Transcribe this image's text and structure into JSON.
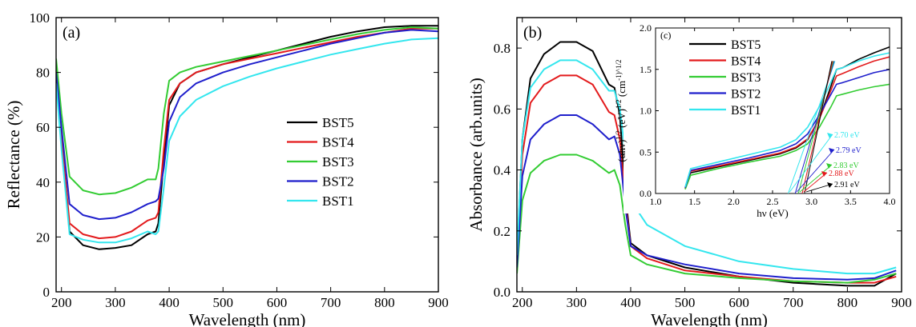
{
  "chart_data": [
    {
      "type": "line",
      "panel_label": "(a)",
      "xlabel": "Wavelength (nm)",
      "ylabel": "Reflectance (%)",
      "xlim": [
        190,
        900
      ],
      "ylim": [
        0,
        100
      ],
      "xticks": [
        200,
        300,
        400,
        500,
        600,
        700,
        800,
        900
      ],
      "yticks": [
        0,
        20,
        40,
        60,
        80,
        100
      ],
      "legend_position": "center-right",
      "series": [
        {
          "name": "BST5",
          "color": "#000000",
          "x": [
            190,
            200,
            215,
            240,
            270,
            300,
            330,
            360,
            375,
            380,
            390,
            400,
            420,
            450,
            500,
            550,
            600,
            650,
            700,
            750,
            800,
            850,
            900
          ],
          "y": [
            78,
            55,
            22,
            17,
            15.5,
            16,
            17,
            21,
            22,
            25,
            48,
            68,
            76,
            80,
            83,
            85.5,
            88,
            90.5,
            93,
            95,
            96.5,
            97,
            97
          ]
        },
        {
          "name": "BST4",
          "color": "#e31a1c",
          "x": [
            190,
            200,
            215,
            240,
            270,
            300,
            330,
            360,
            375,
            380,
            390,
            400,
            420,
            450,
            500,
            550,
            600,
            650,
            700,
            750,
            800,
            850,
            900
          ],
          "y": [
            79,
            56,
            25,
            21,
            19.5,
            20,
            22,
            26,
            27,
            29,
            52,
            70,
            76,
            80,
            83,
            85,
            87,
            89,
            91,
            93,
            94.5,
            96,
            96
          ]
        },
        {
          "name": "BST3",
          "color": "#33cc33",
          "x": [
            190,
            200,
            215,
            240,
            270,
            300,
            330,
            360,
            375,
            380,
            390,
            400,
            420,
            450,
            500,
            550,
            600,
            650,
            700,
            750,
            800,
            850,
            900
          ],
          "y": [
            85,
            65,
            42,
            37,
            35.5,
            36,
            38,
            41,
            41,
            45,
            65,
            77,
            80,
            82,
            84,
            86,
            88,
            90,
            92,
            94,
            95.5,
            96.5,
            96
          ]
        },
        {
          "name": "BST2",
          "color": "#1f1fcc",
          "x": [
            190,
            200,
            215,
            240,
            270,
            300,
            330,
            360,
            375,
            380,
            390,
            400,
            420,
            450,
            500,
            550,
            600,
            650,
            700,
            750,
            800,
            850,
            900
          ],
          "y": [
            80,
            60,
            32,
            28,
            26.5,
            27,
            29,
            32,
            33,
            34,
            45,
            62,
            71,
            76,
            80,
            83,
            85.5,
            88,
            90.5,
            92.5,
            94.5,
            95.5,
            95
          ]
        },
        {
          "name": "BST1",
          "color": "#33e6ee",
          "x": [
            190,
            200,
            215,
            240,
            270,
            300,
            330,
            360,
            375,
            380,
            390,
            400,
            420,
            450,
            500,
            550,
            600,
            650,
            700,
            750,
            800,
            850,
            900
          ],
          "y": [
            76,
            52,
            21,
            19,
            18,
            18,
            19.5,
            22,
            21,
            22,
            38,
            55,
            64,
            70,
            75,
            78.5,
            81.5,
            84,
            86.5,
            88.5,
            90.5,
            92,
            92.5
          ]
        }
      ]
    },
    {
      "type": "line",
      "panel_label": "(b)",
      "xlabel": "Wavelength (nm)",
      "ylabel": "Absorbance (arb.units)",
      "xlim": [
        190,
        900
      ],
      "ylim": [
        0,
        0.9
      ],
      "xticks": [
        200,
        300,
        400,
        500,
        600,
        700,
        800,
        900
      ],
      "yticks": [
        0.0,
        0.2,
        0.4,
        0.6,
        0.8
      ],
      "series": [
        {
          "name": "BST5",
          "color": "#000000",
          "x": [
            190,
            200,
            215,
            240,
            270,
            300,
            330,
            360,
            370,
            380,
            390,
            400,
            430,
            500,
            600,
            700,
            800,
            850,
            890
          ],
          "y": [
            0.1,
            0.5,
            0.7,
            0.78,
            0.82,
            0.82,
            0.79,
            0.68,
            0.67,
            0.58,
            0.32,
            0.16,
            0.12,
            0.08,
            0.05,
            0.03,
            0.02,
            0.02,
            0.06
          ]
        },
        {
          "name": "BST4",
          "color": "#e31a1c",
          "x": [
            190,
            200,
            215,
            240,
            270,
            300,
            330,
            360,
            370,
            380,
            390,
            400,
            430,
            500,
            600,
            700,
            800,
            850,
            890
          ],
          "y": [
            0.1,
            0.45,
            0.62,
            0.68,
            0.71,
            0.71,
            0.68,
            0.59,
            0.58,
            0.5,
            0.3,
            0.15,
            0.11,
            0.07,
            0.05,
            0.035,
            0.03,
            0.03,
            0.05
          ]
        },
        {
          "name": "BST3",
          "color": "#33cc33",
          "x": [
            190,
            200,
            215,
            240,
            270,
            300,
            330,
            360,
            370,
            380,
            390,
            400,
            430,
            500,
            600,
            700,
            800,
            850,
            890
          ],
          "y": [
            0.06,
            0.3,
            0.39,
            0.43,
            0.45,
            0.45,
            0.43,
            0.39,
            0.4,
            0.35,
            0.22,
            0.12,
            0.09,
            0.06,
            0.045,
            0.035,
            0.03,
            0.04,
            0.06
          ]
        },
        {
          "name": "BST2",
          "color": "#1f1fcc",
          "x": [
            190,
            200,
            215,
            240,
            270,
            300,
            330,
            360,
            370,
            380,
            390,
            400,
            430,
            500,
            600,
            700,
            800,
            850,
            890
          ],
          "y": [
            0.08,
            0.38,
            0.5,
            0.55,
            0.58,
            0.58,
            0.55,
            0.5,
            0.51,
            0.45,
            0.28,
            0.15,
            0.12,
            0.09,
            0.06,
            0.045,
            0.04,
            0.045,
            0.07
          ]
        },
        {
          "name": "BST1",
          "color": "#33e6ee",
          "x": [
            190,
            200,
            215,
            240,
            270,
            300,
            330,
            360,
            370,
            380,
            390,
            400,
            430,
            500,
            600,
            700,
            800,
            850,
            890
          ],
          "y": [
            0.12,
            0.5,
            0.67,
            0.73,
            0.76,
            0.76,
            0.73,
            0.66,
            0.66,
            0.6,
            0.45,
            0.3,
            0.22,
            0.15,
            0.1,
            0.075,
            0.06,
            0.06,
            0.08
          ]
        }
      ]
    },
    {
      "type": "line",
      "panel_label": "(c)",
      "xlabel": "hν (eV)",
      "ylabel": "(αhν)^1/2 (eV)^1/2 (cm^-1)^1/2",
      "xlim": [
        1.0,
        4.0
      ],
      "ylim": [
        0.0,
        2.0
      ],
      "xticks": [
        1.0,
        1.5,
        2.0,
        2.5,
        3.0,
        3.5,
        4.0
      ],
      "yticks": [
        0.0,
        0.5,
        1.0,
        1.5,
        2.0
      ],
      "legend_position": "upper-left",
      "series": [
        {
          "name": "BST5",
          "color": "#000000",
          "x": [
            1.38,
            1.45,
            1.8,
            2.2,
            2.6,
            2.8,
            2.95,
            3.1,
            3.25,
            3.32,
            3.4,
            3.6,
            3.8,
            4.0
          ],
          "y": [
            0.06,
            0.25,
            0.32,
            0.4,
            0.48,
            0.55,
            0.65,
            0.9,
            1.3,
            1.5,
            1.52,
            1.62,
            1.7,
            1.77
          ]
        },
        {
          "name": "BST4",
          "color": "#e31a1c",
          "x": [
            1.38,
            1.45,
            1.8,
            2.2,
            2.6,
            2.8,
            2.95,
            3.1,
            3.25,
            3.32,
            3.4,
            3.6,
            3.8,
            4.0
          ],
          "y": [
            0.06,
            0.27,
            0.33,
            0.41,
            0.49,
            0.56,
            0.66,
            0.9,
            1.25,
            1.42,
            1.45,
            1.53,
            1.6,
            1.65
          ]
        },
        {
          "name": "BST3",
          "color": "#33cc33",
          "x": [
            1.38,
            1.45,
            1.8,
            2.2,
            2.6,
            2.8,
            2.95,
            3.1,
            3.25,
            3.32,
            3.4,
            3.6,
            3.8,
            4.0
          ],
          "y": [
            0.05,
            0.22,
            0.3,
            0.38,
            0.45,
            0.52,
            0.6,
            0.8,
            1.05,
            1.18,
            1.2,
            1.25,
            1.29,
            1.32
          ]
        },
        {
          "name": "BST2",
          "color": "#1f1fcc",
          "x": [
            1.38,
            1.45,
            1.8,
            2.2,
            2.6,
            2.8,
            2.95,
            3.1,
            3.25,
            3.32,
            3.4,
            3.6,
            3.8,
            4.0
          ],
          "y": [
            0.07,
            0.28,
            0.35,
            0.43,
            0.52,
            0.6,
            0.72,
            0.95,
            1.2,
            1.32,
            1.34,
            1.4,
            1.46,
            1.5
          ]
        },
        {
          "name": "BST1",
          "color": "#33e6ee",
          "x": [
            1.38,
            1.45,
            1.8,
            2.2,
            2.6,
            2.8,
            2.95,
            3.1,
            3.25,
            3.32,
            3.4,
            3.6,
            3.8,
            4.0
          ],
          "y": [
            0.08,
            0.3,
            0.38,
            0.47,
            0.56,
            0.65,
            0.8,
            1.05,
            1.35,
            1.5,
            1.52,
            1.6,
            1.66,
            1.7
          ]
        }
      ],
      "annotations": [
        {
          "text": "2.70 eV",
          "color": "#33e6ee",
          "value": 2.7
        },
        {
          "text": "2.79 eV",
          "color": "#1f1fcc",
          "value": 2.79
        },
        {
          "text": "2.83 eV",
          "color": "#33cc33",
          "value": 2.83
        },
        {
          "text": "2.88 eV",
          "color": "#e31a1c",
          "value": 2.88
        },
        {
          "text": "2.91 eV",
          "color": "#000000",
          "value": 2.91
        }
      ]
    }
  ]
}
